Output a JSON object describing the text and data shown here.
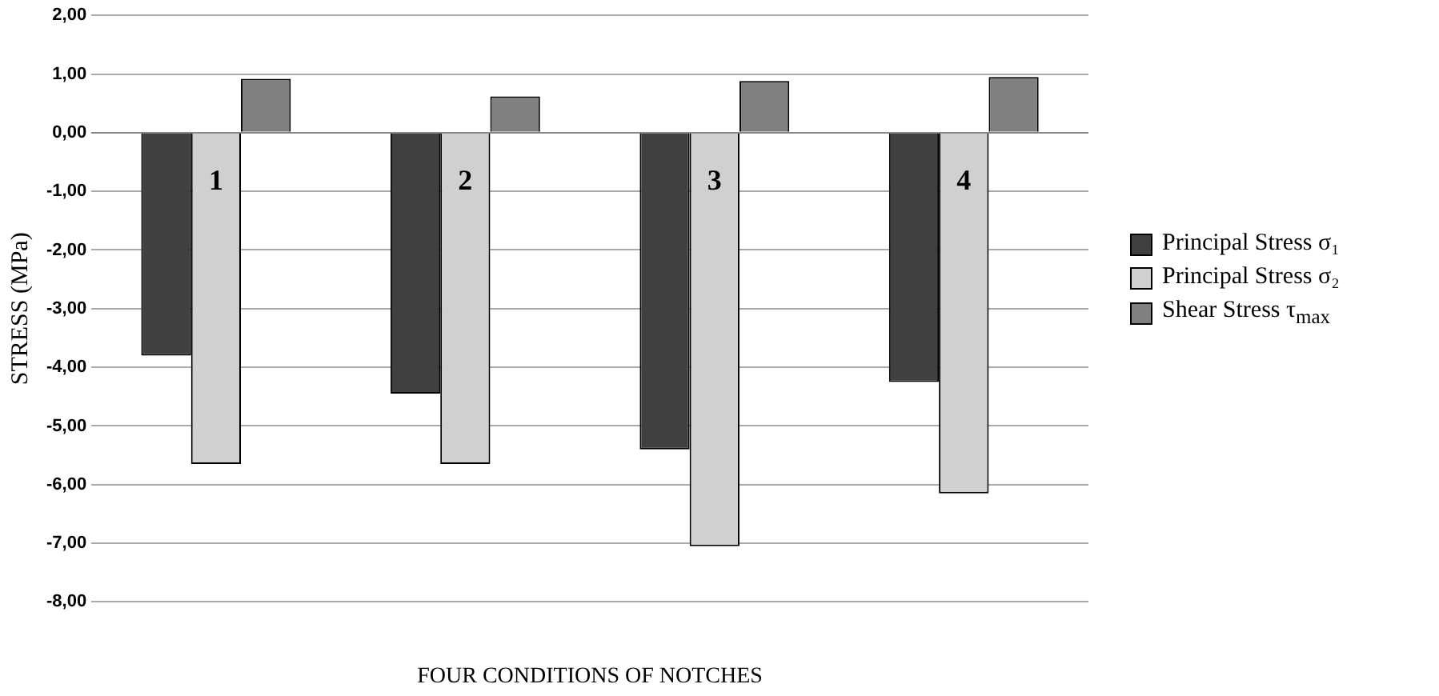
{
  "chart_data": {
    "type": "bar",
    "xlabel": "FOUR CONDITIONS OF NOTCHES",
    "ylabel": "STRESS (MPa)",
    "categories": [
      "1",
      "2",
      "3",
      "4"
    ],
    "series": [
      {
        "name": "Principal Stress σ₁",
        "color": "#404040",
        "values": [
          -3.8,
          -4.45,
          -5.4,
          -4.25
        ]
      },
      {
        "name": "Principal Stress σ₂",
        "color": "#d0d0d0",
        "values": [
          -5.65,
          -5.65,
          -7.05,
          -6.15
        ]
      },
      {
        "name": "Shear Stress τ$_{max}$",
        "color": "#808080",
        "values": [
          0.92,
          0.62,
          0.88,
          0.95
        ]
      }
    ],
    "ylim": [
      -8,
      2
    ],
    "yticks": [
      {
        "value": -8,
        "label": "-8,00"
      },
      {
        "value": -7,
        "label": "-7,00"
      },
      {
        "value": -6,
        "label": "-6,00"
      },
      {
        "value": -5,
        "label": "-5,00"
      },
      {
        "value": -4,
        "label": "-4,00"
      },
      {
        "value": -3,
        "label": "-3,00"
      },
      {
        "value": -2,
        "label": "-2,00"
      },
      {
        "value": -1,
        "label": "-1,00"
      },
      {
        "value": 0,
        "label": "0,00"
      },
      {
        "value": 1,
        "label": "1,00"
      },
      {
        "value": 2,
        "label": "2,00"
      }
    ],
    "grid": "y",
    "legend": "right"
  }
}
